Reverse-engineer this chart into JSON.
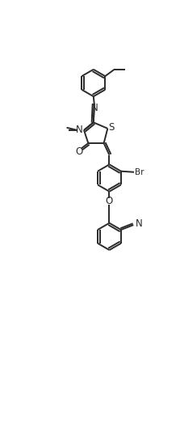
{
  "background_color": "#ffffff",
  "line_color": "#2a2a2a",
  "line_width": 1.4,
  "font_size": 7.5,
  "figsize": [
    2.23,
    5.39
  ],
  "dpi": 100,
  "xlim": [
    0,
    10
  ],
  "ylim": [
    0,
    22
  ]
}
